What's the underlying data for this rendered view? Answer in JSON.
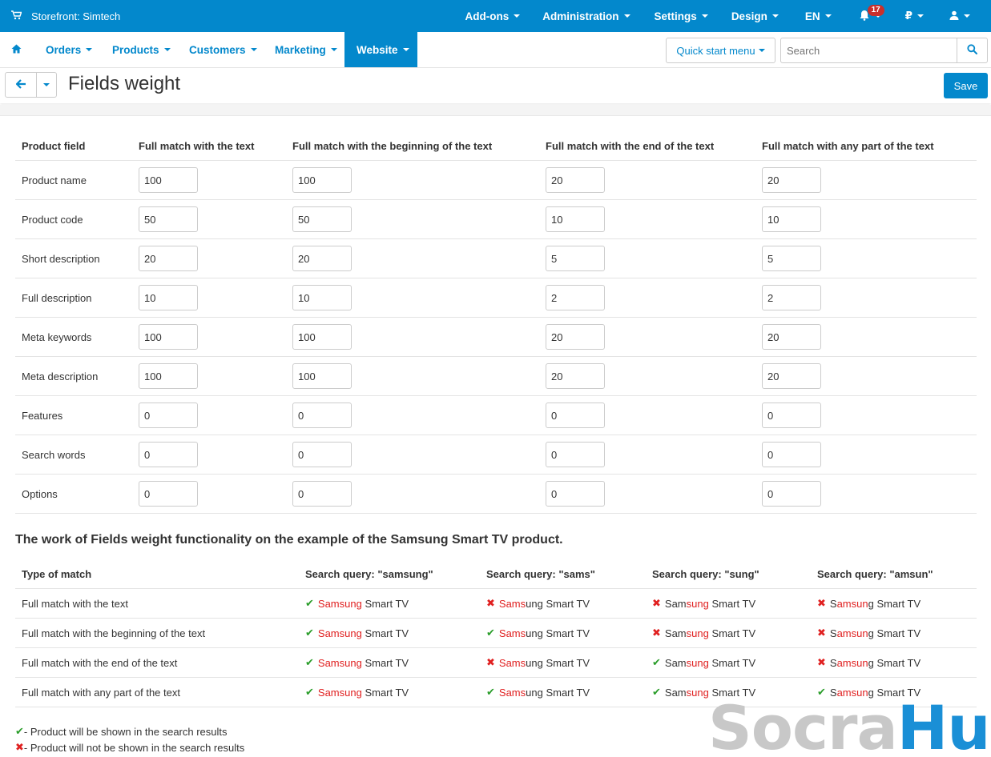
{
  "topbar": {
    "store_label": "Storefront: Simtech",
    "menu": [
      "Add-ons",
      "Administration",
      "Settings",
      "Design",
      "EN"
    ],
    "notifications_count": "17",
    "currency": "₽"
  },
  "navbar": {
    "items": [
      "Orders",
      "Products",
      "Customers",
      "Marketing",
      "Website"
    ],
    "quick_start": "Quick start menu",
    "search_placeholder": "Search"
  },
  "titlebar": {
    "title": "Fields weight",
    "save_label": "Save"
  },
  "weights": {
    "headers": [
      "Product field",
      "Full match with the text",
      "Full match with the beginning of the text",
      "Full match with the end of the text",
      "Full match with any part of the text"
    ],
    "rows": [
      {
        "field": "Product name",
        "values": [
          "100",
          "100",
          "20",
          "20"
        ]
      },
      {
        "field": "Product code",
        "values": [
          "50",
          "50",
          "10",
          "10"
        ]
      },
      {
        "field": "Short description",
        "values": [
          "20",
          "20",
          "5",
          "5"
        ]
      },
      {
        "field": "Full description",
        "values": [
          "10",
          "10",
          "2",
          "2"
        ]
      },
      {
        "field": "Meta keywords",
        "values": [
          "100",
          "100",
          "20",
          "20"
        ]
      },
      {
        "field": "Meta description",
        "values": [
          "100",
          "100",
          "20",
          "20"
        ]
      },
      {
        "field": "Features",
        "values": [
          "0",
          "0",
          "0",
          "0"
        ]
      },
      {
        "field": "Search words",
        "values": [
          "0",
          "0",
          "0",
          "0"
        ]
      },
      {
        "field": "Options",
        "values": [
          "0",
          "0",
          "0",
          "0"
        ]
      }
    ]
  },
  "example": {
    "title": "The work of Fields weight functionality on the example of the Samsung Smart TV product.",
    "headers": [
      "Type of match",
      "Search query: \"samsung\"",
      "Search query: \"sams\"",
      "Search query: \"sung\"",
      "Search query: \"amsun\""
    ],
    "query_parts": [
      {
        "pre": "",
        "hl": "Samsung",
        "post": " Smart TV"
      },
      {
        "pre": "",
        "hl": "Sams",
        "post": "ung Smart TV"
      },
      {
        "pre": "Sam",
        "hl": "sung",
        "post": " Smart TV"
      },
      {
        "pre": "S",
        "hl": "amsun",
        "post": "g Smart TV"
      }
    ],
    "rows": [
      {
        "label": "Full match with the text",
        "results": [
          true,
          false,
          false,
          false
        ]
      },
      {
        "label": "Full match with the beginning of the text",
        "results": [
          true,
          true,
          false,
          false
        ]
      },
      {
        "label": "Full match with the end of the text",
        "results": [
          true,
          false,
          true,
          false
        ]
      },
      {
        "label": "Full match with any part of the text",
        "results": [
          true,
          true,
          true,
          true
        ]
      }
    ]
  },
  "legend": {
    "shown": " - Product will be shown in the search results",
    "not_shown": " - Product will not be shown in the search results"
  },
  "watermark": {
    "part1": "Socra",
    "part2": "Hub"
  },
  "colors": {
    "primary": "#0388cc",
    "check": "#2a9d2a",
    "cross": "#e02020",
    "highlight": "#e02020"
  }
}
